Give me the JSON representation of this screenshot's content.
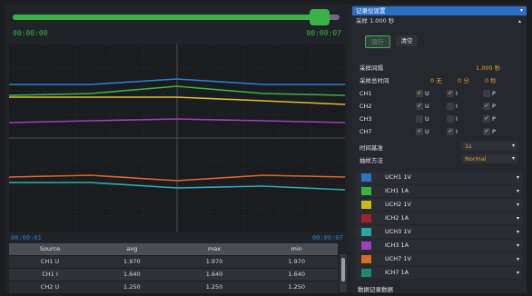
{
  "playback": {
    "time_start": "00:00:00",
    "time_end": "00:00:07",
    "position_fraction": 0.97
  },
  "plot": {
    "time_left": "00:00:01",
    "time_right": "00:00:07",
    "background": "#1a1c20",
    "traces": [
      {
        "color": "#2f7fd0"
      },
      {
        "color": "#3ab24a"
      },
      {
        "color": "#d8c02a"
      },
      {
        "color": "#a43fbf"
      },
      {
        "color": "#e06a28"
      },
      {
        "color": "#2fb0a8"
      }
    ]
  },
  "table": {
    "headers": [
      "Source",
      "avg",
      "max",
      "min"
    ],
    "rows": [
      [
        "CH1 U",
        "1.970",
        "1.970",
        "1.970"
      ],
      [
        "CH1 I",
        "1.640",
        "1.640",
        "1.640"
      ],
      [
        "CH2 U",
        "1.250",
        "1.250",
        "1.250"
      ]
    ]
  },
  "panel": {
    "title": "记录仪设置",
    "title_caret": "▾",
    "sample_label": "采样 1.000 秒",
    "sample_caret": "▴",
    "run_button": "运行",
    "clear_button": "清空",
    "interval_label": "采样间隔",
    "interval_value": "1.000 秒",
    "total_label": "采样总时间",
    "total_hours": "0 无",
    "total_minutes": "0 分",
    "total_seconds": "0 秒",
    "channels": [
      {
        "name": "CH1",
        "u": true,
        "i": true,
        "p": false
      },
      {
        "name": "CH2",
        "u": true,
        "i": false,
        "p": true
      },
      {
        "name": "CH3",
        "u": false,
        "i": false,
        "p": true
      },
      {
        "name": "CH7",
        "u": true,
        "i": true,
        "p": true
      }
    ],
    "check_mark": "✓",
    "u_letter": "U",
    "i_letter": "I",
    "p_letter": "P",
    "timebase_label": "时间基准",
    "timebase_value": "1s",
    "method_label": "抽样方法",
    "method_value": "Normal",
    "dropdown_caret": "▾",
    "channel_list": [
      {
        "label": "UCH1  1V",
        "color": "#2f6fd0"
      },
      {
        "label": "ICH1  1A",
        "color": "#3ab24a"
      },
      {
        "label": "UCH2  1V",
        "color": "#c9b826"
      },
      {
        "label": "ICH2  1A",
        "color": "#a3212a"
      },
      {
        "label": "UCH3  1V",
        "color": "#2aa5a0"
      },
      {
        "label": "ICH3  1A",
        "color": "#a03fbf"
      },
      {
        "label": "UCH7  1V",
        "color": "#d86a26"
      },
      {
        "label": "ICH7  1A",
        "color": "#1f8a6b"
      }
    ],
    "footer": "数据记录数据"
  }
}
